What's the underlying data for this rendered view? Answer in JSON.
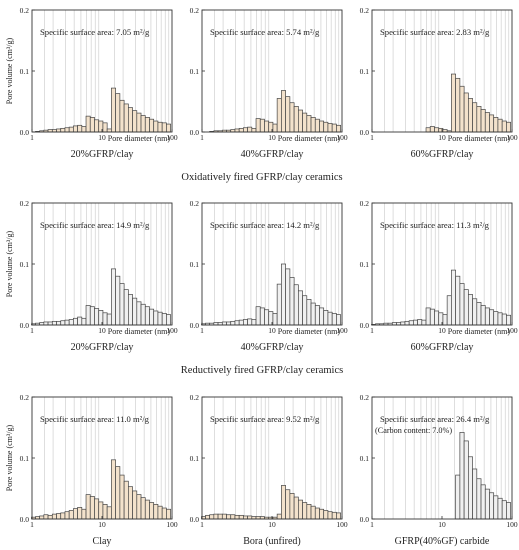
{
  "figure": {
    "bins": [
      1.05,
      1.2,
      1.38,
      1.58,
      1.82,
      2.09,
      2.4,
      2.76,
      3.17,
      3.64,
      4.18,
      4.8,
      5.52,
      6.34,
      7.28,
      8.37,
      9.62,
      11.05,
      12.7,
      14.6,
      16.8,
      19.3,
      22.2,
      25.5,
      29.3,
      33.7,
      38.7,
      44.5,
      51.1,
      58.7,
      67.5,
      77.6,
      89.1
    ],
    "gridlines": [
      1.5,
      2,
      3,
      4,
      5,
      6,
      7,
      8,
      9,
      15,
      20,
      30,
      40,
      50,
      60,
      70,
      80,
      90
    ],
    "fills": {
      "tan": "#f3e2cc",
      "gray": "#f0f0f0"
    },
    "edge_color": "#444444",
    "row_captions": [
      "Oxidatively fired GFRP/clay ceramics",
      "Reductively fired GFRP/clay ceramics"
    ]
  },
  "chart_data": [
    {
      "type": "bar",
      "subplot_title": "20%GFRP/clay",
      "fill": "tan",
      "ylabel": "Pore volume  (cm³/g)",
      "xlabel": "Pore diameter (nm)",
      "xscale": "log",
      "xlim": [
        1,
        100
      ],
      "ylim": [
        0,
        0.2
      ],
      "xticks": [
        "1",
        "10",
        "100"
      ],
      "yticks": [
        "0.0",
        "0.1",
        "0.2"
      ],
      "annotation": "Specific surface area: 7.05 m²/g",
      "values": [
        0,
        0.001,
        0.002,
        0.003,
        0.004,
        0.004,
        0.005,
        0.006,
        0.007,
        0.008,
        0.01,
        0.011,
        0.009,
        0.026,
        0.024,
        0.02,
        0.018,
        0.015,
        0.005,
        0.072,
        0.063,
        0.052,
        0.046,
        0.04,
        0.035,
        0.031,
        0.027,
        0.024,
        0.021,
        0.018,
        0.016,
        0.015,
        0.013
      ]
    },
    {
      "type": "bar",
      "subplot_title": "40%GFRP/clay",
      "fill": "tan",
      "ylabel": "",
      "xlabel": "Pore diameter (nm)",
      "xscale": "log",
      "xlim": [
        1,
        100
      ],
      "ylim": [
        0,
        0.2
      ],
      "xticks": [
        "1",
        "10",
        "100"
      ],
      "yticks": [
        "0.0",
        "0.1",
        "0.2"
      ],
      "annotation": "Specific surface area: 5.74 m²/g",
      "values": [
        0,
        0,
        0.001,
        0.002,
        0.002,
        0.003,
        0.003,
        0.004,
        0.005,
        0.006,
        0.007,
        0.008,
        0.006,
        0.022,
        0.021,
        0.018,
        0.016,
        0.013,
        0.055,
        0.068,
        0.058,
        0.048,
        0.042,
        0.036,
        0.031,
        0.027,
        0.024,
        0.021,
        0.018,
        0.016,
        0.014,
        0.013,
        0.011
      ]
    },
    {
      "type": "bar",
      "subplot_title": "60%GFRP/clay",
      "fill": "tan",
      "ylabel": "",
      "xlabel": "Pore diameter (nm)",
      "xscale": "log",
      "xlim": [
        1,
        100
      ],
      "ylim": [
        0,
        0.2
      ],
      "xticks": [
        "1",
        "10",
        "100"
      ],
      "yticks": [
        "0.0",
        "0.1",
        "0.2"
      ],
      "annotation": "Specific surface area: 2.83 m²/g",
      "values": [
        0,
        0,
        0,
        0,
        0,
        0,
        0,
        0,
        0,
        0,
        0,
        0,
        0,
        0.007,
        0.009,
        0.007,
        0.006,
        0.004,
        0.002,
        0.095,
        0.088,
        0.075,
        0.064,
        0.055,
        0.048,
        0.042,
        0.037,
        0.032,
        0.028,
        0.024,
        0.021,
        0.018,
        0.016
      ]
    },
    {
      "type": "bar",
      "subplot_title": "20%GFRP/clay",
      "fill": "gray",
      "ylabel": "Pore volume  (cm³/g)",
      "xlabel": "Pore diameter (nm)",
      "xscale": "log",
      "xlim": [
        1,
        100
      ],
      "ylim": [
        0,
        0.2
      ],
      "xticks": [
        "1",
        "10",
        "100"
      ],
      "yticks": [
        "0.0",
        "0.1",
        "0.2"
      ],
      "annotation": "Specific surface area: 14.9 m²/g",
      "values": [
        0.002,
        0.003,
        0.004,
        0.005,
        0.005,
        0.006,
        0.006,
        0.007,
        0.008,
        0.009,
        0.011,
        0.013,
        0.011,
        0.032,
        0.03,
        0.027,
        0.024,
        0.02,
        0.018,
        0.092,
        0.08,
        0.068,
        0.058,
        0.05,
        0.044,
        0.038,
        0.034,
        0.03,
        0.026,
        0.023,
        0.021,
        0.019,
        0.017
      ]
    },
    {
      "type": "bar",
      "subplot_title": "40%GFRP/clay",
      "fill": "gray",
      "ylabel": "",
      "xlabel": "Pore diameter (nm)",
      "xscale": "log",
      "xlim": [
        1,
        100
      ],
      "ylim": [
        0,
        0.2
      ],
      "xticks": [
        "1",
        "10",
        "100"
      ],
      "yticks": [
        "0.0",
        "0.1",
        "0.2"
      ],
      "annotation": "Specific surface area: 14.2 m²/g",
      "values": [
        0.002,
        0.003,
        0.003,
        0.004,
        0.004,
        0.005,
        0.005,
        0.006,
        0.007,
        0.008,
        0.009,
        0.01,
        0.009,
        0.03,
        0.028,
        0.025,
        0.022,
        0.019,
        0.067,
        0.1,
        0.092,
        0.078,
        0.066,
        0.056,
        0.048,
        0.042,
        0.036,
        0.032,
        0.028,
        0.024,
        0.021,
        0.019,
        0.017
      ]
    },
    {
      "type": "bar",
      "subplot_title": "60%GFRP/clay",
      "fill": "gray",
      "ylabel": "",
      "xlabel": "Pore diameter (nm)",
      "xscale": "log",
      "xlim": [
        1,
        100
      ],
      "ylim": [
        0,
        0.2
      ],
      "xticks": [
        "1",
        "10",
        "100"
      ],
      "yticks": [
        "0.0",
        "0.1",
        "0.2"
      ],
      "annotation": "Specific surface area: 11.3 m²/g",
      "values": [
        0.001,
        0.002,
        0.002,
        0.003,
        0.003,
        0.004,
        0.004,
        0.005,
        0.006,
        0.007,
        0.008,
        0.009,
        0.008,
        0.028,
        0.026,
        0.023,
        0.02,
        0.017,
        0.048,
        0.09,
        0.08,
        0.068,
        0.058,
        0.05,
        0.043,
        0.037,
        0.032,
        0.028,
        0.025,
        0.022,
        0.02,
        0.018,
        0.016
      ]
    },
    {
      "type": "bar",
      "subplot_title": "Clay",
      "fill": "tan",
      "ylabel": "Pore volume  (cm³/g)",
      "xlabel": "",
      "xscale": "log",
      "xlim": [
        1,
        100
      ],
      "ylim": [
        0,
        0.2
      ],
      "xticks": [
        "1",
        "10",
        "100"
      ],
      "yticks": [
        "0.0",
        "0.1",
        "0.2"
      ],
      "annotation": "Specific surface area: 11.0 m²/g",
      "values": [
        0.003,
        0.004,
        0.005,
        0.007,
        0.006,
        0.008,
        0.009,
        0.01,
        0.012,
        0.014,
        0.017,
        0.019,
        0.016,
        0.04,
        0.037,
        0.033,
        0.028,
        0.024,
        0.02,
        0.097,
        0.086,
        0.072,
        0.062,
        0.053,
        0.046,
        0.04,
        0.035,
        0.031,
        0.027,
        0.024,
        0.021,
        0.018,
        0.016
      ]
    },
    {
      "type": "bar",
      "subplot_title": "Bora (unfired)",
      "fill": "tan",
      "ylabel": "",
      "xlabel": "",
      "xscale": "log",
      "xlim": [
        1,
        100
      ],
      "ylim": [
        0,
        0.2
      ],
      "xticks": [
        "1",
        "10",
        "100"
      ],
      "yticks": [
        "0.0",
        "0.1",
        "0.2"
      ],
      "annotation": "Specific surface area: 9.52 m²/g",
      "values": [
        0.004,
        0.006,
        0.007,
        0.008,
        0.008,
        0.008,
        0.007,
        0.007,
        0.006,
        0.006,
        0.005,
        0.005,
        0.004,
        0.004,
        0.004,
        0.003,
        0.003,
        0.003,
        0.008,
        0.055,
        0.048,
        0.042,
        0.036,
        0.031,
        0.027,
        0.024,
        0.021,
        0.018,
        0.016,
        0.014,
        0.012,
        0.011,
        0.01
      ]
    },
    {
      "type": "bar",
      "subplot_title": "GFRP(40%GF) carbide",
      "fill": "gray",
      "ylabel": "",
      "xlabel": "",
      "xscale": "log",
      "xlim": [
        1,
        100
      ],
      "ylim": [
        0,
        0.2
      ],
      "xticks": [
        "1",
        "10",
        "100"
      ],
      "yticks": [
        "0.0",
        "0.1",
        "0.2"
      ],
      "annotation": "Specific surface area: 26.4 m²/g",
      "annotation2": "(Carbon content: 7.0%)",
      "values": [
        0,
        0,
        0,
        0,
        0,
        0,
        0,
        0,
        0,
        0,
        0,
        0,
        0,
        0,
        0,
        0,
        0,
        0,
        0,
        0,
        0.072,
        0.142,
        0.128,
        0.102,
        0.082,
        0.066,
        0.056,
        0.049,
        0.043,
        0.038,
        0.034,
        0.03,
        0.027
      ]
    }
  ]
}
